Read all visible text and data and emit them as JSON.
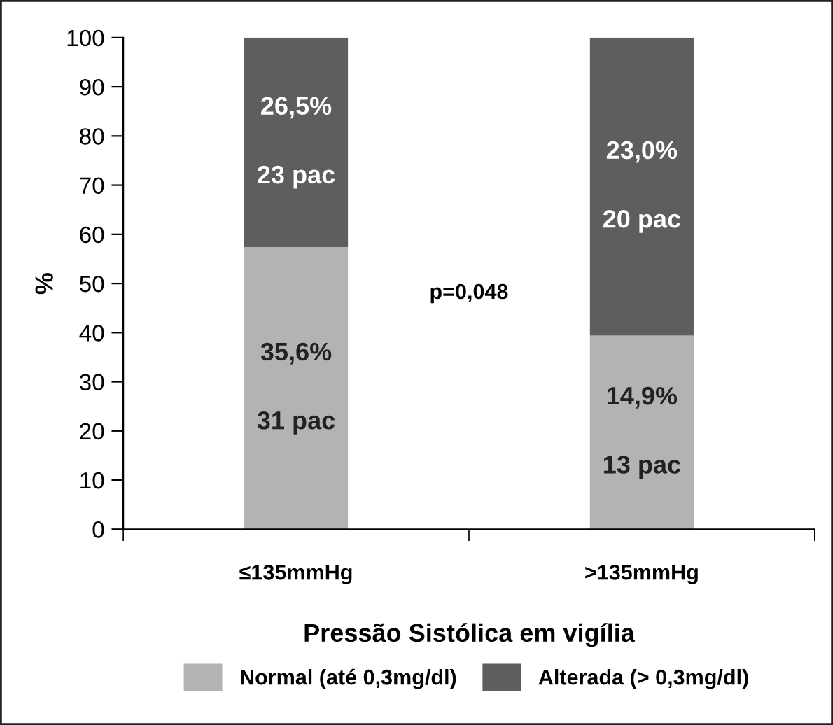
{
  "chart_data": {
    "type": "bar",
    "stacked": true,
    "ylabel": "%",
    "xlabel": "Pressão Sistólica em vigília",
    "categories": [
      "≤135mmHg",
      ">135mmHg"
    ],
    "series": [
      {
        "name": "Normal (até 0,3mg/dl)",
        "color": "#b3b3b3",
        "values": [
          57.4,
          39.4
        ]
      },
      {
        "name": "Alterada (> 0,3mg/dl)",
        "color": "#5e5e5e",
        "values": [
          42.6,
          60.6
        ]
      }
    ],
    "ylim": [
      0,
      100
    ],
    "yticks": [
      0,
      10,
      20,
      30,
      40,
      50,
      60,
      70,
      80,
      90,
      100
    ],
    "grid": false,
    "legend": "bottom",
    "annotations": [
      "35,6%",
      "31 pac",
      "14,9%",
      "13 pac",
      "26,5%",
      "23 pac",
      "23,0%",
      "20 pac",
      "p=0,048"
    ]
  }
}
